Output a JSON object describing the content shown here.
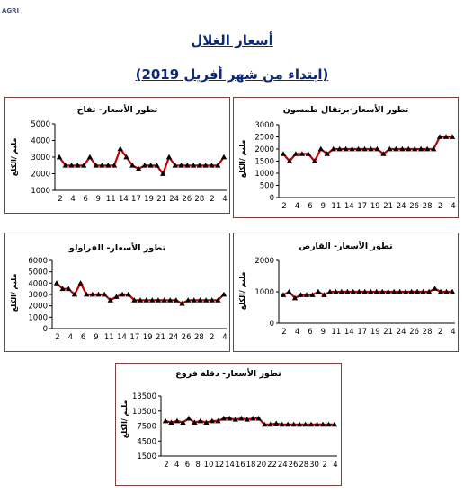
{
  "logo": {
    "text": "AGRI"
  },
  "header": {
    "title": "أسعار الغلال",
    "subtitle": "(ابتداء من شهر أفريل 2019)"
  },
  "colors": {
    "line": "#c00000",
    "marker": "#000000",
    "border": "#7f3f3f"
  },
  "chart_data": [
    {
      "id": "apple",
      "type": "line",
      "title": "تطور الأسعار- تفاح",
      "ylabel": "ملیم /الكلغ",
      "ylim": [
        1000,
        5000
      ],
      "yticks": [
        1000,
        2000,
        3000,
        4000,
        5000
      ],
      "xticks": [
        "2",
        "4",
        "6",
        "9",
        "11",
        "14",
        "17",
        "19",
        "21",
        "24",
        "26",
        "28",
        "2",
        "4"
      ],
      "values": [
        3000,
        2500,
        2500,
        2500,
        2500,
        3000,
        2500,
        2500,
        2500,
        2500,
        3500,
        3000,
        2500,
        2300,
        2500,
        2500,
        2500,
        2000,
        3000,
        2500,
        2500,
        2500,
        2500,
        2500,
        2500,
        2500,
        2500,
        3000
      ]
    },
    {
      "id": "orange",
      "type": "line",
      "title": "تطور الأسعار-برتقال طمسون",
      "ylabel": "ملیم /الكلغ",
      "ylim": [
        0,
        3000
      ],
      "yticks": [
        0,
        500,
        1000,
        1500,
        2000,
        2500,
        3000
      ],
      "xticks": [
        "2",
        "4",
        "6",
        "9",
        "11",
        "14",
        "17",
        "19",
        "21",
        "24",
        "26",
        "28",
        "2",
        "4"
      ],
      "values": [
        1800,
        1500,
        1800,
        1800,
        1800,
        1500,
        2000,
        1800,
        2000,
        2000,
        2000,
        2000,
        2000,
        2000,
        2000,
        2000,
        1800,
        2000,
        2000,
        2000,
        2000,
        2000,
        2000,
        2000,
        2000,
        2500,
        2500,
        2500
      ]
    },
    {
      "id": "strawberry",
      "type": "line",
      "title": "تطور الأسعار- الفراولو",
      "ylabel": "ملیم /الكلغ",
      "ylim": [
        0,
        6000
      ],
      "yticks": [
        0,
        1000,
        2000,
        3000,
        4000,
        5000,
        6000
      ],
      "xticks": [
        "2",
        "4",
        "6",
        "9",
        "11",
        "14",
        "17",
        "19",
        "21",
        "24",
        "26",
        "28",
        "2",
        "4"
      ],
      "values": [
        4000,
        3500,
        3500,
        3000,
        4000,
        3000,
        3000,
        3000,
        3000,
        2500,
        2800,
        3000,
        3000,
        2500,
        2500,
        2500,
        2500,
        2500,
        2500,
        2500,
        2500,
        2200,
        2500,
        2500,
        2500,
        2500,
        2500,
        2500,
        3000
      ]
    },
    {
      "id": "artichoke",
      "type": "line",
      "title": "تطور الأسعار- القارص",
      "ylabel": "ملیم /الكلغ",
      "ylim": [
        0,
        2000
      ],
      "yticks": [
        0,
        1000,
        2000
      ],
      "xticks": [
        "2",
        "4",
        "6",
        "9",
        "11",
        "14",
        "17",
        "19",
        "21",
        "24",
        "26",
        "28",
        "2",
        "4"
      ],
      "values": [
        900,
        1000,
        800,
        900,
        900,
        900,
        1000,
        900,
        1000,
        1000,
        1000,
        1000,
        1000,
        1000,
        1000,
        1000,
        1000,
        1000,
        1000,
        1000,
        1000,
        1000,
        1000,
        1000,
        1000,
        1000,
        1100,
        1000,
        1000,
        1000
      ]
    },
    {
      "id": "dates",
      "type": "line",
      "title": "تطور الأسعار- دقلة فروع",
      "ylabel": "ملیم /الكلغ",
      "ylim": [
        1500,
        13500
      ],
      "yticks": [
        1500,
        4500,
        7500,
        10500,
        13500
      ],
      "xticks": [
        "2",
        "4",
        "6",
        "8",
        "10",
        "12",
        "14",
        "16",
        "18",
        "20",
        "22",
        "24",
        "26",
        "28",
        "30",
        "2",
        "4"
      ],
      "values": [
        8500,
        8200,
        8500,
        8200,
        9000,
        8200,
        8500,
        8200,
        8500,
        8500,
        9000,
        9000,
        8800,
        9000,
        8800,
        9000,
        9000,
        7800,
        7800,
        8000,
        7800,
        7800,
        7800,
        7800,
        7800,
        7800,
        7800,
        7800,
        7800,
        7800
      ]
    }
  ]
}
